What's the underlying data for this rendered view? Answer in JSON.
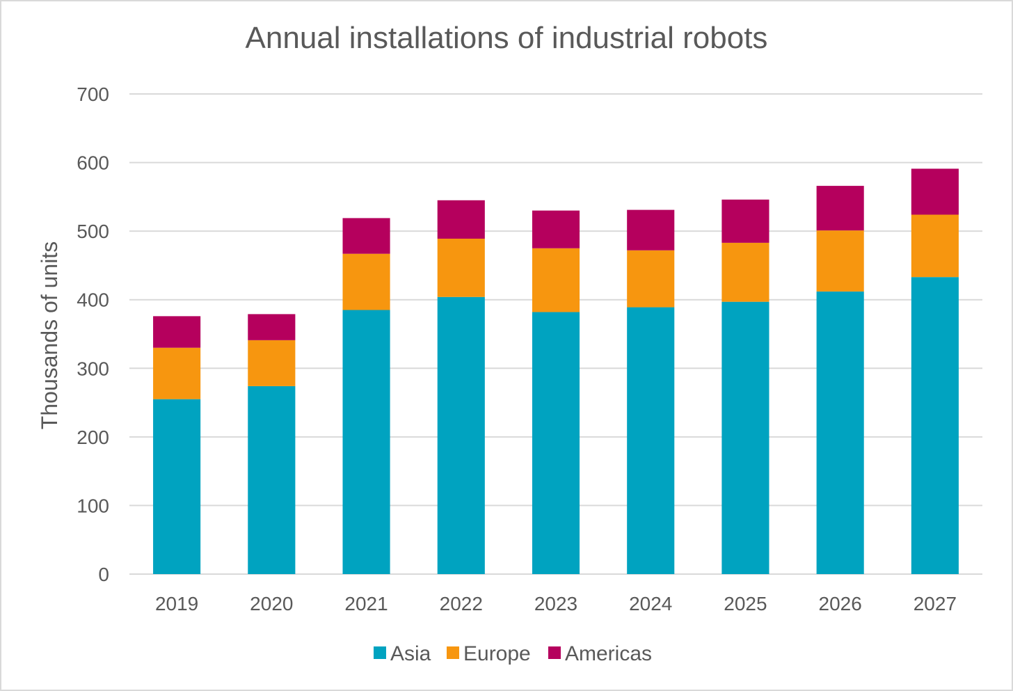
{
  "chart_data": {
    "type": "bar",
    "stacked": true,
    "title": "Annual installations of industrial robots",
    "xlabel": "",
    "ylabel": "Thousands of units",
    "ylim": [
      0,
      700
    ],
    "yticks": [
      0,
      100,
      200,
      300,
      400,
      500,
      600,
      700
    ],
    "grid": true,
    "legend_position": "bottom",
    "categories": [
      "2019",
      "2020",
      "2021",
      "2022",
      "2023",
      "2024",
      "2025",
      "2026",
      "2027"
    ],
    "series": [
      {
        "name": "Asia",
        "color": "#00a3c0",
        "values": [
          255,
          274,
          385,
          404,
          382,
          389,
          397,
          412,
          433
        ]
      },
      {
        "name": "Europe",
        "color": "#f7960f",
        "values": [
          75,
          67,
          82,
          85,
          93,
          83,
          86,
          89,
          91
        ]
      },
      {
        "name": "Americas",
        "color": "#b5005d",
        "values": [
          46,
          38,
          52,
          56,
          55,
          59,
          63,
          65,
          67
        ]
      }
    ]
  }
}
